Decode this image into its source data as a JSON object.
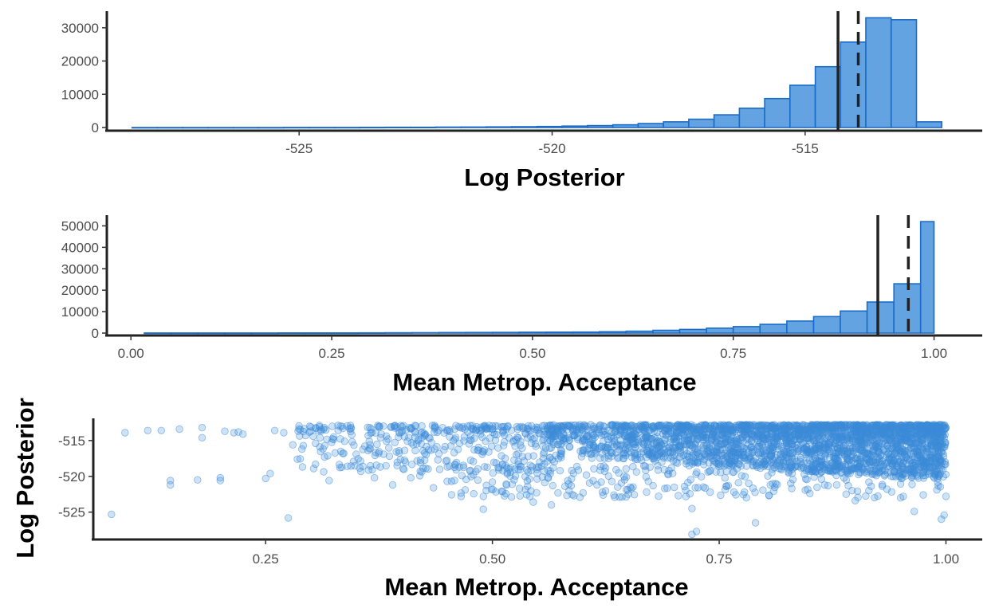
{
  "chart_data": [
    {
      "type": "bar",
      "subtype": "histogram",
      "xlabel": "Log Posterior",
      "xlim": [
        -528.8,
        -511.5
      ],
      "ylim": [
        0,
        35000
      ],
      "xticks": [
        -525,
        -520,
        -515
      ],
      "xtick_labels": [
        "-525",
        "-520",
        "-515"
      ],
      "yticks": [
        0,
        10000,
        20000,
        30000
      ],
      "ytick_labels": [
        "0",
        "10000",
        "20000",
        "30000"
      ],
      "grid": false,
      "bar_fill": "#63a3e1",
      "bar_stroke": "#1a6cc9",
      "bin_edges": [
        -528.3,
        -527.8,
        -527.3,
        -526.8,
        -526.3,
        -525.8,
        -525.3,
        -524.8,
        -524.3,
        -523.8,
        -523.3,
        -522.8,
        -522.3,
        -521.8,
        -521.3,
        -520.8,
        -520.3,
        -519.8,
        -519.3,
        -518.8,
        -518.3,
        -517.8,
        -517.3,
        -516.8,
        -516.3,
        -515.8,
        -515.3,
        -514.8,
        -514.3,
        -513.8,
        -513.3,
        -512.8,
        -512.3
      ],
      "counts": [
        5,
        5,
        5,
        5,
        10,
        10,
        15,
        20,
        30,
        40,
        60,
        80,
        110,
        140,
        180,
        230,
        310,
        420,
        580,
        820,
        1200,
        1700,
        2500,
        3800,
        5800,
        8700,
        12700,
        18300,
        25700,
        33000,
        32400,
        1700
      ],
      "vlines": [
        {
          "x": -514.35,
          "style": "solid",
          "color": "#222222"
        },
        {
          "x": -513.95,
          "style": "dashed",
          "color": "#222222"
        }
      ]
    },
    {
      "type": "bar",
      "subtype": "histogram",
      "xlabel": "Mean Metrop. Acceptance",
      "xlim": [
        -0.03,
        1.06
      ],
      "ylim": [
        0,
        55000
      ],
      "xticks": [
        0,
        0.25,
        0.5,
        0.75,
        1
      ],
      "xtick_labels": [
        "0.00",
        "0.25",
        "0.50",
        "0.75",
        "1.00"
      ],
      "yticks": [
        0,
        10000,
        20000,
        30000,
        40000,
        50000
      ],
      "ytick_labels": [
        "0",
        "10000",
        "20000",
        "30000",
        "40000",
        "50000"
      ],
      "grid": false,
      "bar_fill": "#63a3e1",
      "bar_stroke": "#1a6cc9",
      "bin_edges": [
        0.0167,
        0.05,
        0.0833,
        0.1167,
        0.15,
        0.1833,
        0.2167,
        0.25,
        0.2833,
        0.3167,
        0.35,
        0.3833,
        0.4167,
        0.45,
        0.4833,
        0.5167,
        0.55,
        0.5833,
        0.6167,
        0.65,
        0.6833,
        0.7167,
        0.75,
        0.7833,
        0.8167,
        0.85,
        0.8833,
        0.9167,
        0.95,
        0.9833,
        1.0
      ],
      "counts": [
        20,
        25,
        30,
        40,
        50,
        60,
        70,
        80,
        100,
        150,
        200,
        250,
        300,
        350,
        400,
        450,
        500,
        650,
        900,
        1300,
        1700,
        2300,
        3000,
        4100,
        5600,
        7700,
        10300,
        14500,
        23000,
        52000
      ],
      "vlines": [
        {
          "x": 0.93,
          "style": "solid",
          "color": "#222222"
        },
        {
          "x": 0.968,
          "style": "dashed",
          "color": "#222222"
        }
      ]
    },
    {
      "type": "scatter",
      "xlabel": "Mean Metrop. Acceptance",
      "ylabel": "Log Posterior",
      "xlim": [
        0.06,
        1.04
      ],
      "ylim": [
        -528.6,
        -511.9
      ],
      "xticks": [
        0.25,
        0.5,
        0.75,
        1
      ],
      "xtick_labels": [
        "0.25",
        "0.50",
        "0.75",
        "1.00"
      ],
      "yticks": [
        -525,
        -520,
        -515
      ],
      "ytick_labels": [
        "-525",
        "-520",
        "-515"
      ],
      "grid": false,
      "point_color": "#3a8ad8",
      "point_alpha": 0.25,
      "points": [
        [
          0.08,
          -525.3
        ],
        [
          0.095,
          -513.9
        ],
        [
          0.12,
          -513.6
        ],
        [
          0.135,
          -513.6
        ],
        [
          0.145,
          -520.6
        ],
        [
          0.145,
          -521.2
        ],
        [
          0.155,
          -513.4
        ],
        [
          0.175,
          -520.5
        ],
        [
          0.18,
          -514.6
        ],
        [
          0.18,
          -513.2
        ],
        [
          0.2,
          -520.2
        ],
        [
          0.2,
          -520.6
        ],
        [
          0.205,
          -513.7
        ],
        [
          0.215,
          -513.9
        ],
        [
          0.22,
          -513.8
        ],
        [
          0.225,
          -514.1
        ],
        [
          0.25,
          -520.3
        ],
        [
          0.255,
          -519.6
        ],
        [
          0.26,
          -513.6
        ],
        [
          0.27,
          -513.9
        ],
        [
          0.275,
          -525.8
        ],
        [
          0.28,
          -515.6
        ],
        [
          0.285,
          -517.6
        ],
        [
          0.29,
          -516.2
        ],
        [
          0.3,
          -513.1
        ],
        [
          0.305,
          -515.4
        ],
        [
          0.31,
          -514.6
        ],
        [
          0.315,
          -517.3
        ],
        [
          0.32,
          -520.6
        ],
        [
          0.33,
          -513.6
        ],
        [
          0.335,
          -516.8
        ],
        [
          0.34,
          -518.6
        ],
        [
          0.345,
          -514.2
        ],
        [
          0.355,
          -519.3
        ],
        [
          0.365,
          -513.2
        ],
        [
          0.37,
          -520.2
        ],
        [
          0.38,
          -516.9
        ],
        [
          0.385,
          -514.8
        ],
        [
          0.39,
          -521.2
        ],
        [
          0.395,
          -518.5
        ],
        [
          0.405,
          -513.5
        ],
        [
          0.41,
          -520.2
        ],
        [
          0.415,
          -516.4
        ],
        [
          0.42,
          -519.9
        ],
        [
          0.43,
          -514.6
        ],
        [
          0.435,
          -521.6
        ],
        [
          0.44,
          -517.7
        ],
        [
          0.445,
          -513.2
        ],
        [
          0.455,
          -520.7
        ],
        [
          0.46,
          -519.1
        ],
        [
          0.47,
          -521.9
        ],
        [
          0.48,
          -516.3
        ],
        [
          0.49,
          -524.6
        ],
        [
          0.5,
          -520.8
        ],
        [
          0.51,
          -522.1
        ],
        [
          0.52,
          -519.4
        ],
        [
          0.53,
          -521.7
        ],
        [
          0.545,
          -523.6
        ],
        [
          0.555,
          -520.1
        ],
        [
          0.565,
          -524.0
        ],
        [
          0.58,
          -521.4
        ],
        [
          0.6,
          -522.3
        ],
        [
          0.62,
          -520.8
        ],
        [
          0.64,
          -522.9
        ],
        [
          0.655,
          -521.5
        ],
        [
          0.67,
          -522.2
        ],
        [
          0.69,
          -521.7
        ],
        [
          0.705,
          -522.7
        ],
        [
          0.72,
          -524.5
        ],
        [
          0.72,
          -528.1
        ],
        [
          0.725,
          -527.7
        ],
        [
          0.74,
          -522.2
        ],
        [
          0.76,
          -521.3
        ],
        [
          0.78,
          -523.0
        ],
        [
          0.79,
          -526.5
        ],
        [
          0.81,
          -522.1
        ],
        [
          0.83,
          -521.7
        ],
        [
          0.85,
          -522.4
        ],
        [
          0.87,
          -521.3
        ],
        [
          0.89,
          -522.5
        ],
        [
          0.9,
          -523.4
        ],
        [
          0.915,
          -522.0
        ],
        [
          0.935,
          -521.8
        ],
        [
          0.95,
          -523.0
        ],
        [
          0.965,
          -524.9
        ],
        [
          0.975,
          -522.6
        ],
        [
          0.99,
          -521.9
        ],
        [
          0.995,
          -526.0
        ],
        [
          0.998,
          -525.4
        ],
        [
          1.0,
          -522.8
        ]
      ],
      "band": {
        "note": "dense overlap region",
        "x_start": 0.55,
        "x_end": 1.0,
        "y_top": -512.8,
        "y_bottom_at_start": -517.0,
        "y_bottom_at_end": -520.5
      }
    }
  ]
}
